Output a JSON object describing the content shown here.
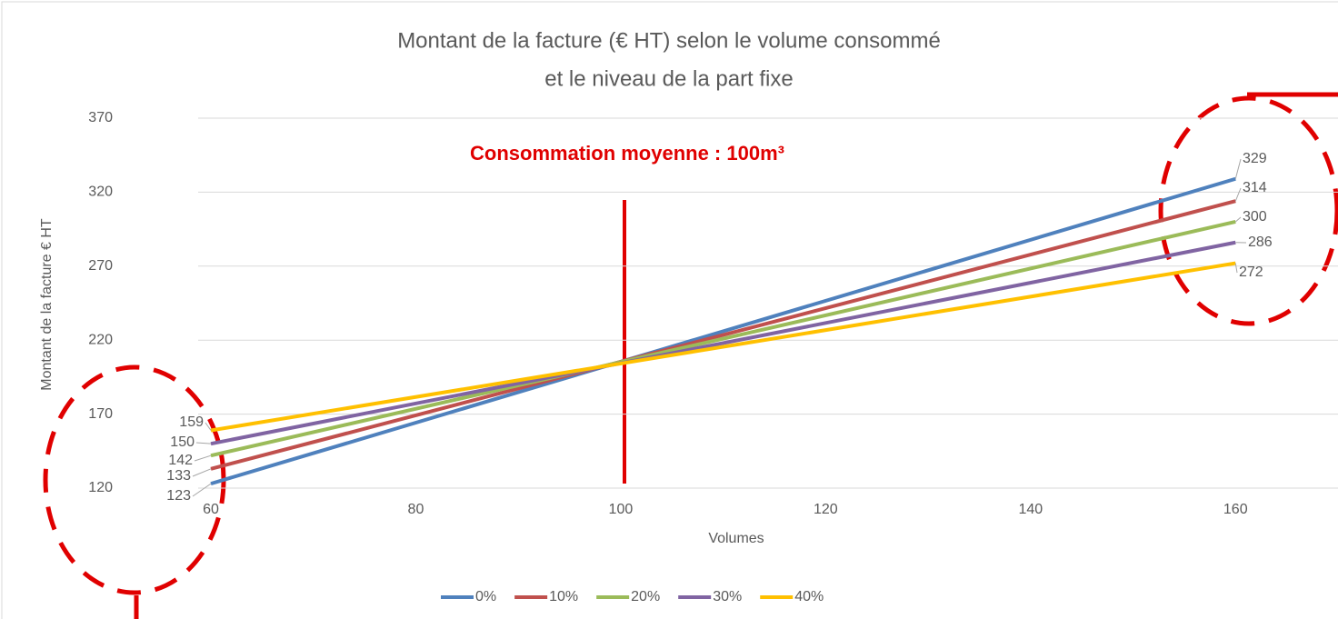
{
  "chart_data": {
    "type": "line",
    "title": [
      "Montant de la facture (€ HT) selon le volume consommé",
      "et le niveau de la part fixe"
    ],
    "annotation": "Consommation moyenne : 100m³",
    "x_label": "Volumes",
    "y_label": "Montant de la facture € HT",
    "x": [
      60,
      160
    ],
    "series": [
      {
        "name": "0%",
        "color": "#4f81bd",
        "values": [
          123,
          329
        ]
      },
      {
        "name": "10%",
        "color": "#c0504d",
        "values": [
          133,
          314
        ]
      },
      {
        "name": "20%",
        "color": "#9bbb59",
        "values": [
          142,
          300
        ]
      },
      {
        "name": "30%",
        "color": "#8064a2",
        "values": [
          150,
          286
        ]
      },
      {
        "name": "40%",
        "color": "#ffc000",
        "values": [
          159,
          272
        ]
      }
    ],
    "xlim": [
      60,
      170
    ],
    "xticks": [
      60,
      80,
      100,
      120,
      140,
      160
    ],
    "ylim": [
      120,
      370
    ],
    "yticks": [
      120,
      170,
      220,
      270,
      320,
      370
    ],
    "grid": true,
    "legend": "bottom"
  }
}
